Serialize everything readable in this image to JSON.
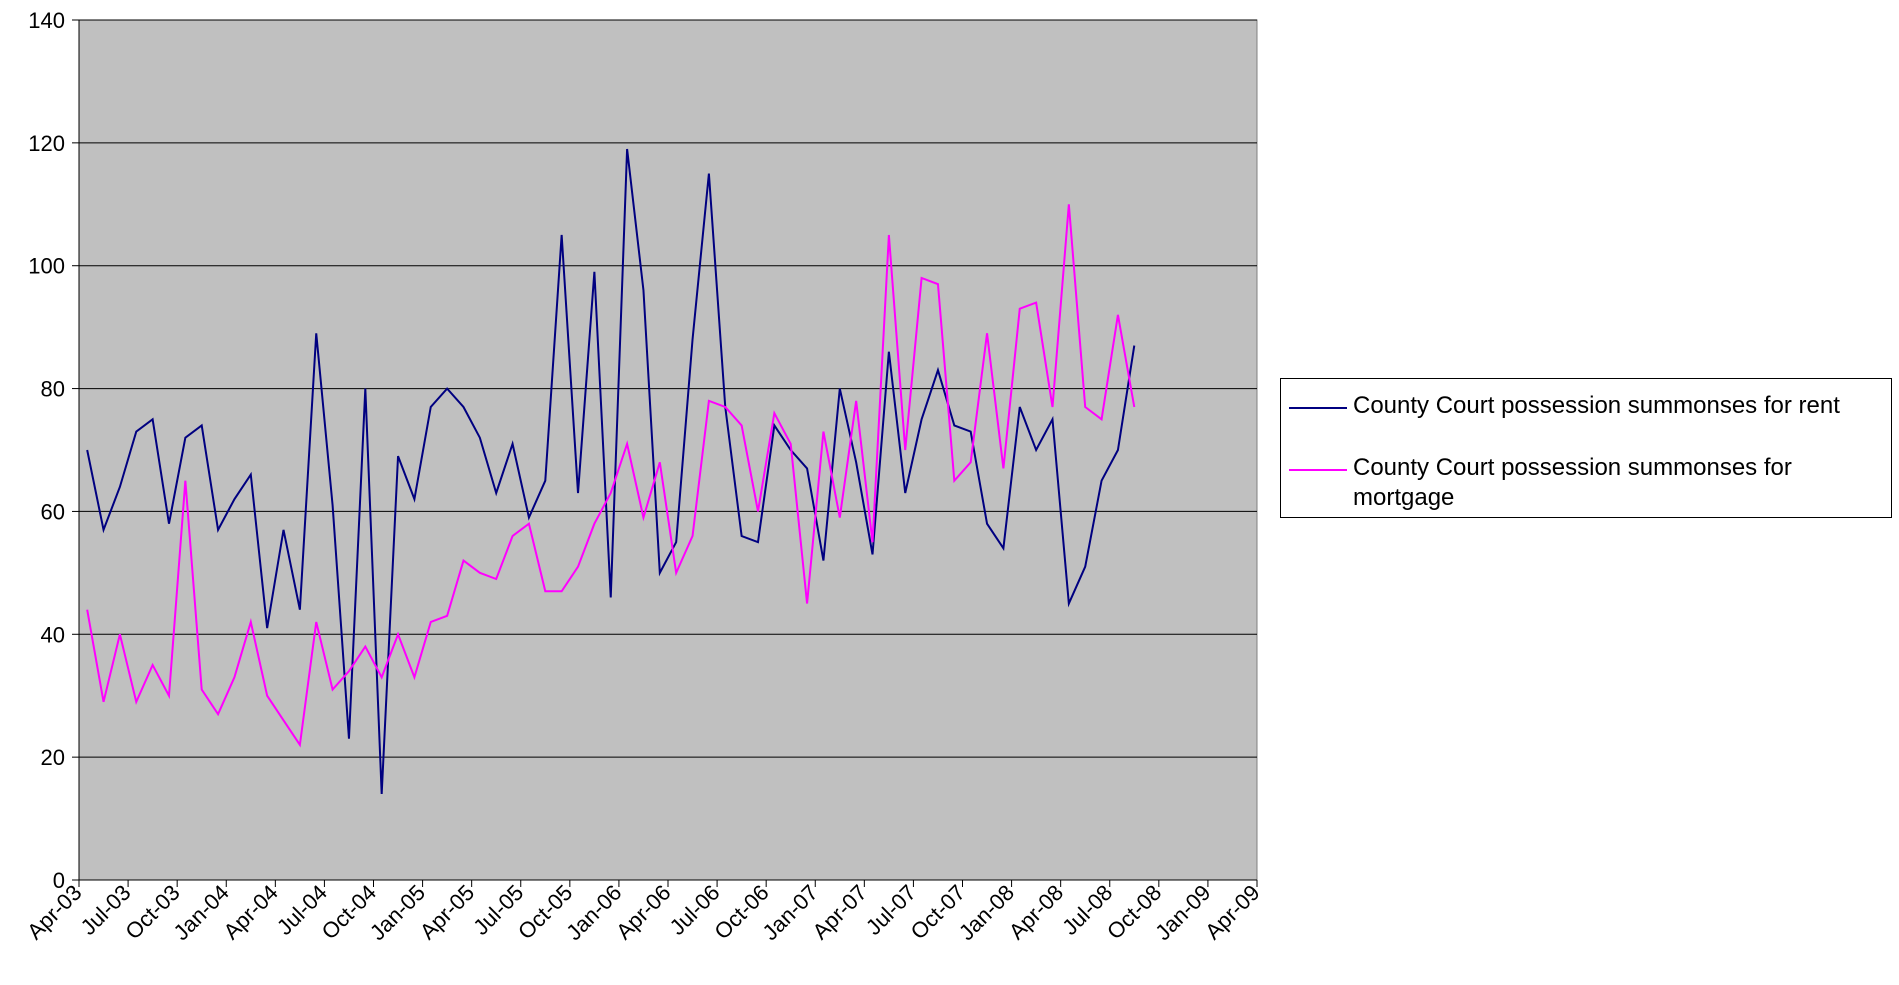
{
  "chart_data": {
    "type": "line",
    "title": "",
    "xlabel": "",
    "ylabel": "",
    "ylim": [
      0,
      140
    ],
    "yticks": [
      0,
      20,
      40,
      60,
      80,
      100,
      120,
      140
    ],
    "x_start": "Apr-03",
    "x_ticks": [
      "Apr-03",
      "Jul-03",
      "Oct-03",
      "Jan-04",
      "Apr-04",
      "Jul-04",
      "Oct-04",
      "Jan-05",
      "Apr-05",
      "Jul-05",
      "Oct-05",
      "Jan-06",
      "Apr-06",
      "Jul-06",
      "Oct-06",
      "Jan-07",
      "Apr-07",
      "Jul-07",
      "Oct-07",
      "Jan-08",
      "Apr-08",
      "Jul-08",
      "Oct-08",
      "Jan-09",
      "Apr-09"
    ],
    "grid": "horizontal",
    "plot_background": "#C0C0C0",
    "legend_position": "right",
    "series": [
      {
        "name": "County Court possession summonses for rent",
        "color": "#000080",
        "values": [
          70,
          57,
          64,
          73,
          75,
          58,
          72,
          74,
          57,
          62,
          66,
          41,
          57,
          44,
          89,
          61,
          23,
          80,
          14,
          69,
          62,
          77,
          80,
          77,
          72,
          63,
          71,
          59,
          65,
          105,
          63,
          99,
          46,
          119,
          96,
          50,
          55,
          88,
          115,
          77,
          56,
          55,
          74,
          70,
          67,
          52,
          80,
          68,
          53,
          86,
          63,
          75,
          83,
          74,
          73,
          58,
          54,
          77,
          70,
          75,
          45,
          51,
          65,
          70,
          87
        ]
      },
      {
        "name": "County Court possession summonses for mortgage",
        "color": "#FF00FF",
        "values": [
          44,
          29,
          40,
          29,
          35,
          30,
          65,
          31,
          27,
          33,
          42,
          30,
          26,
          22,
          42,
          31,
          34,
          38,
          33,
          40,
          33,
          42,
          43,
          52,
          50,
          49,
          56,
          58,
          47,
          47,
          51,
          58,
          63,
          71,
          59,
          68,
          50,
          56,
          78,
          77,
          74,
          60,
          76,
          71,
          45,
          73,
          59,
          78,
          55,
          105,
          70,
          98,
          97,
          65,
          68,
          89,
          67,
          93,
          94,
          77,
          110,
          77,
          75,
          92,
          77
        ]
      }
    ]
  }
}
